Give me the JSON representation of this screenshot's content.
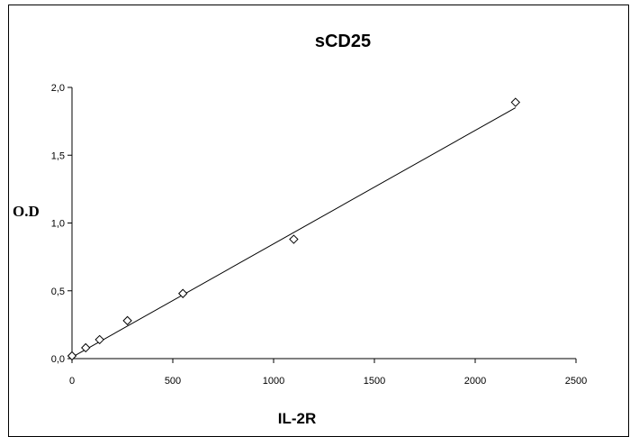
{
  "chart_data": {
    "type": "scatter",
    "title": "sCD25",
    "xlabel": "IL-2R",
    "ylabel": "O.D",
    "xlim": [
      0,
      2500
    ],
    "ylim": [
      0,
      2.0
    ],
    "x_ticks": [
      "0",
      "500",
      "1000",
      "1500",
      "2000",
      "2500"
    ],
    "y_ticks": [
      "0,0",
      "0,5",
      "1,0",
      "1,5",
      "2,0"
    ],
    "grid": false,
    "legend": "none",
    "series": [
      {
        "marker": "diamond",
        "x": [
          0,
          68,
          137,
          275,
          550,
          1100,
          2200
        ],
        "y": [
          0.02,
          0.08,
          0.14,
          0.28,
          0.48,
          0.88,
          1.89
        ]
      }
    ],
    "trendline": {
      "type": "linear",
      "x": [
        0,
        2200
      ],
      "y": [
        0.01,
        1.85
      ]
    }
  }
}
